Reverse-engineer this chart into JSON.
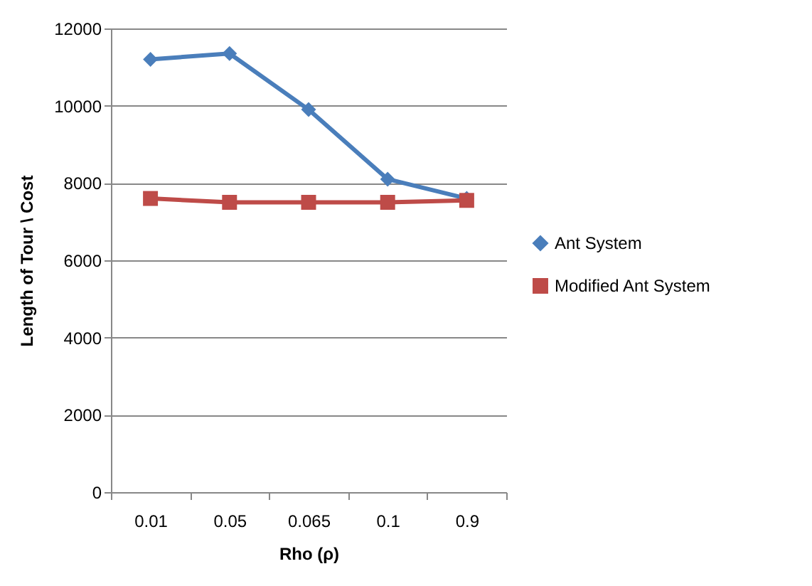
{
  "chart_data": {
    "type": "line",
    "xlabel": "Rho (ρ)",
    "ylabel": "Length of Tour \\ Cost",
    "categories": [
      "0.01",
      "0.05",
      "0.065",
      "0.1",
      "0.9"
    ],
    "series": [
      {
        "name": "Ant System",
        "color": "#4a7ebb",
        "values": [
          11200,
          11350,
          9900,
          8100,
          7600
        ],
        "marker": "diamond"
      },
      {
        "name": "Modified Ant System",
        "color": "#be4b48",
        "values": [
          7600,
          7500,
          7500,
          7500,
          7550
        ],
        "marker": "square"
      }
    ],
    "ylim": [
      0,
      12000
    ],
    "yticks": [
      0,
      2000,
      4000,
      6000,
      8000,
      10000,
      12000
    ],
    "grid": "y",
    "legend": "right",
    "line_style": "solid"
  }
}
